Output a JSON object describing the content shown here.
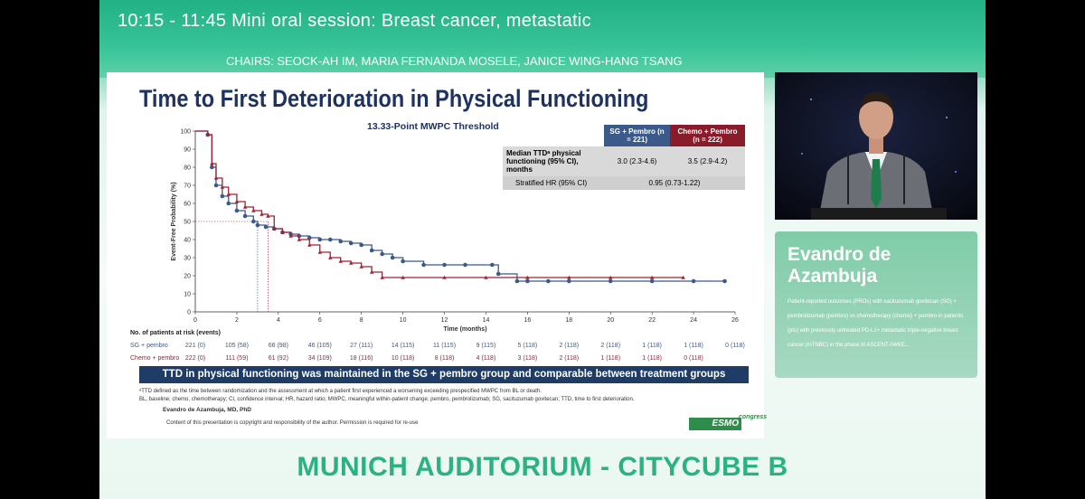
{
  "session": {
    "time_title": "10:15 - 11:45   Mini oral session: Breast cancer, metastatic",
    "chairs": "CHAIRS: SEOCK-AH IM, MARIA FERNANDA MOSELE, JANICE WING-HANG TSANG"
  },
  "slide": {
    "title": "Time to First Deterioration in Physical Functioning",
    "subtitle": "13.33-Point MWPC Threshold",
    "table": {
      "col_sg": "SG + Pembro (n = 221)",
      "col_chemo": "Chemo + Pembro (n = 222)",
      "row1_label": "Median TTDᵃ physical functioning (95% CI), months",
      "row1_sg": "3.0 (2.3-4.6)",
      "row1_chemo": "3.5 (2.9-4.2)",
      "row2_label": "Stratified HR (95% CI)",
      "row2_value": "0.95 (0.73-1.22)"
    },
    "risk": {
      "header": "No. of patients at risk (events)",
      "sg_label": "SG + pembro",
      "chemo_label": "Chemo + pembro",
      "sg_values": [
        "221 (0)",
        "105 (58)",
        "66 (98)",
        "46 (105)",
        "27 (111)",
        "14 (115)",
        "11 (115)",
        "9 (115)",
        "5 (118)",
        "2 (118)",
        "2 (118)",
        "1 (118)",
        "1 (118)",
        "0 (118)"
      ],
      "chemo_values": [
        "222 (0)",
        "111 (59)",
        "61 (92)",
        "34 (109)",
        "18 (116)",
        "10 (118)",
        "8 (118)",
        "4 (118)",
        "3 (118)",
        "2 (118)",
        "1 (118)",
        "1 (118)",
        "0 (118)",
        ""
      ]
    },
    "banner": "TTD in physical functioning was maintained in the SG + pembro group and comparable between treatment groups",
    "footnote1": "ᵃTTD defined as the time between randomization and the assessment at which a patient first experienced a worsening exceeding prespecified MWPC from BL or death.",
    "footnote2": "BL, baseline; chemo, chemotherapy; CI, confidence interval; HR, hazard ratio; MWPC, meaningful within-patient change; pembro, pembrolizumab; SG, sacituzumab govitecan; TTD, time to first deterioration.",
    "presenter": "Evandro de Azambuja, MD, PhD",
    "copyright": "Content of this presentation is copyright and responsibility of the author. Permission is required for re-use",
    "logo_text": "ESMO",
    "logo_congress": "congress"
  },
  "speaker": {
    "name": "Evandro de Azambuja",
    "description": "Patient-reported outcomes (PROs) with sacituzumab govitecan (SG) + pembrolizumab (pembro) vs chemotherapy (chemo) + pembro in patients (pts) with previously untreated PD-L1+ metastatic triple-negative breast cancer (mTNBC) in the phase III ASCENT-04/KE..."
  },
  "venue": "MUNICH AUDITORIUM - CITYCUBE B",
  "chart_data": {
    "type": "line",
    "title": "",
    "xlabel": "Time (months)",
    "ylabel": "Event-Free Probability (%)",
    "xlim": [
      0,
      26
    ],
    "ylim": [
      0,
      100
    ],
    "xticks": [
      0,
      2,
      4,
      6,
      8,
      10,
      12,
      14,
      16,
      18,
      20,
      22,
      24,
      26
    ],
    "yticks": [
      0,
      10,
      20,
      30,
      40,
      50,
      60,
      70,
      80,
      90,
      100
    ],
    "series": [
      {
        "name": "SG + pembro",
        "color": "#3b5a8a",
        "x": [
          0,
          0.6,
          0.8,
          1.0,
          1.3,
          1.6,
          2.0,
          2.4,
          2.8,
          3.0,
          3.4,
          3.8,
          4.2,
          4.6,
          5.0,
          5.5,
          6.0,
          6.5,
          7.0,
          7.5,
          8.0,
          8.5,
          9.0,
          9.5,
          10.0,
          11.0,
          12.0,
          13.0,
          14.3,
          14.6,
          15.5,
          16.0,
          17.0,
          18.0,
          20.0,
          22.0,
          24.0,
          25.5
        ],
        "y": [
          100,
          98,
          80,
          70,
          64,
          60,
          56,
          53,
          50,
          48,
          47,
          46,
          44,
          43,
          42,
          41,
          40,
          40,
          39,
          38,
          37,
          34,
          32,
          30,
          28,
          26,
          26,
          26,
          26,
          21,
          17,
          17,
          17,
          17,
          17,
          17,
          17,
          17
        ]
      },
      {
        "name": "Chemo + pembro",
        "color": "#9b2335",
        "x": [
          0,
          0.6,
          0.8,
          1.0,
          1.3,
          1.6,
          2.0,
          2.4,
          2.8,
          3.2,
          3.5,
          3.8,
          4.2,
          4.6,
          5.0,
          5.5,
          6.0,
          6.5,
          7.0,
          7.5,
          8.0,
          8.5,
          9.0,
          10.0,
          12.0,
          14.0,
          16.0,
          18.0,
          20.0,
          22.0,
          23.5
        ],
        "y": [
          100,
          98,
          82,
          74,
          69,
          65,
          61,
          58,
          56,
          54,
          53,
          46,
          44,
          42,
          40,
          37,
          33,
          30,
          28,
          27,
          25,
          22,
          19,
          19,
          19,
          19,
          19,
          19,
          19,
          19,
          19
        ]
      }
    ],
    "median_markers": {
      "sg": 3.0,
      "chemo": 3.5,
      "y": 50
    }
  }
}
